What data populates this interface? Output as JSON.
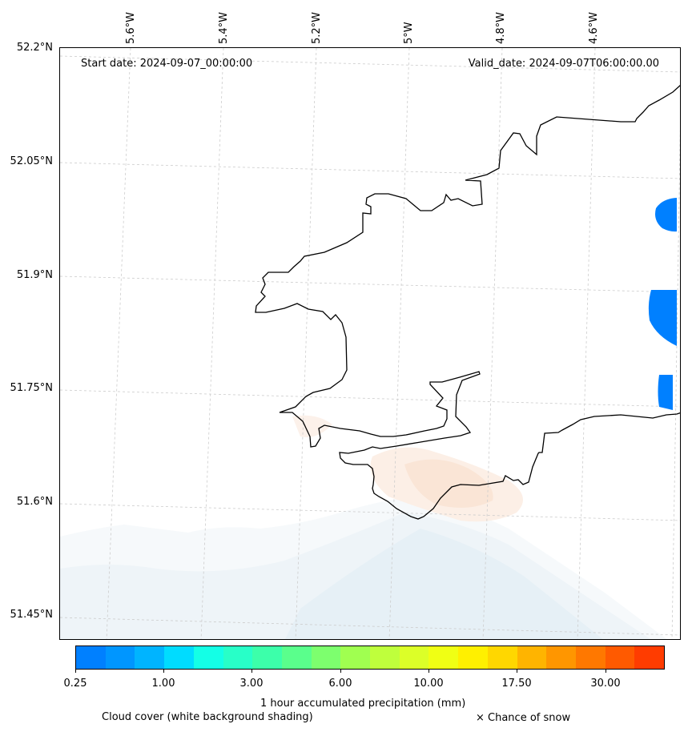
{
  "map": {
    "start_date": "Start date: 2024-09-07_00:00:00",
    "valid_date": "Valid_date: 2024-09-07T06:00:00.00",
    "lat_labels": [
      "52.2°N",
      "52.05°N",
      "51.9°N",
      "51.75°N",
      "51.6°N",
      "51.45°N"
    ],
    "lon_labels": [
      "5.6°W",
      "5.4°W",
      "5.2°W",
      "5°W",
      "4.8°W",
      "4.6°W"
    ],
    "coastline_color": "#000000",
    "gridline_color": "#cccccc"
  },
  "colorbar": {
    "colors": [
      "#0080ff",
      "#0096ff",
      "#00b4ff",
      "#00dcff",
      "#14ffe6",
      "#28ffc8",
      "#3cffaa",
      "#5aff8c",
      "#7dff6e",
      "#a0ff50",
      "#bfff3c",
      "#dcff28",
      "#f0ff14",
      "#fff000",
      "#ffd700",
      "#ffb400",
      "#ff9600",
      "#ff7800",
      "#ff5a00",
      "#ff3c00"
    ],
    "tick_labels": [
      "0.25",
      "1.00",
      "3.00",
      "6.00",
      "10.00",
      "17.50",
      "30.00"
    ],
    "label": "1 hour accumulated precipitation (mm)"
  },
  "captions": {
    "cloud_cover": "Cloud cover (white background shading)",
    "snow": "× Chance of snow"
  },
  "precip_color": "#0080ff",
  "cloud_shade_color": "#e6f0f6",
  "warm_shade_color": "#fbe6d8"
}
